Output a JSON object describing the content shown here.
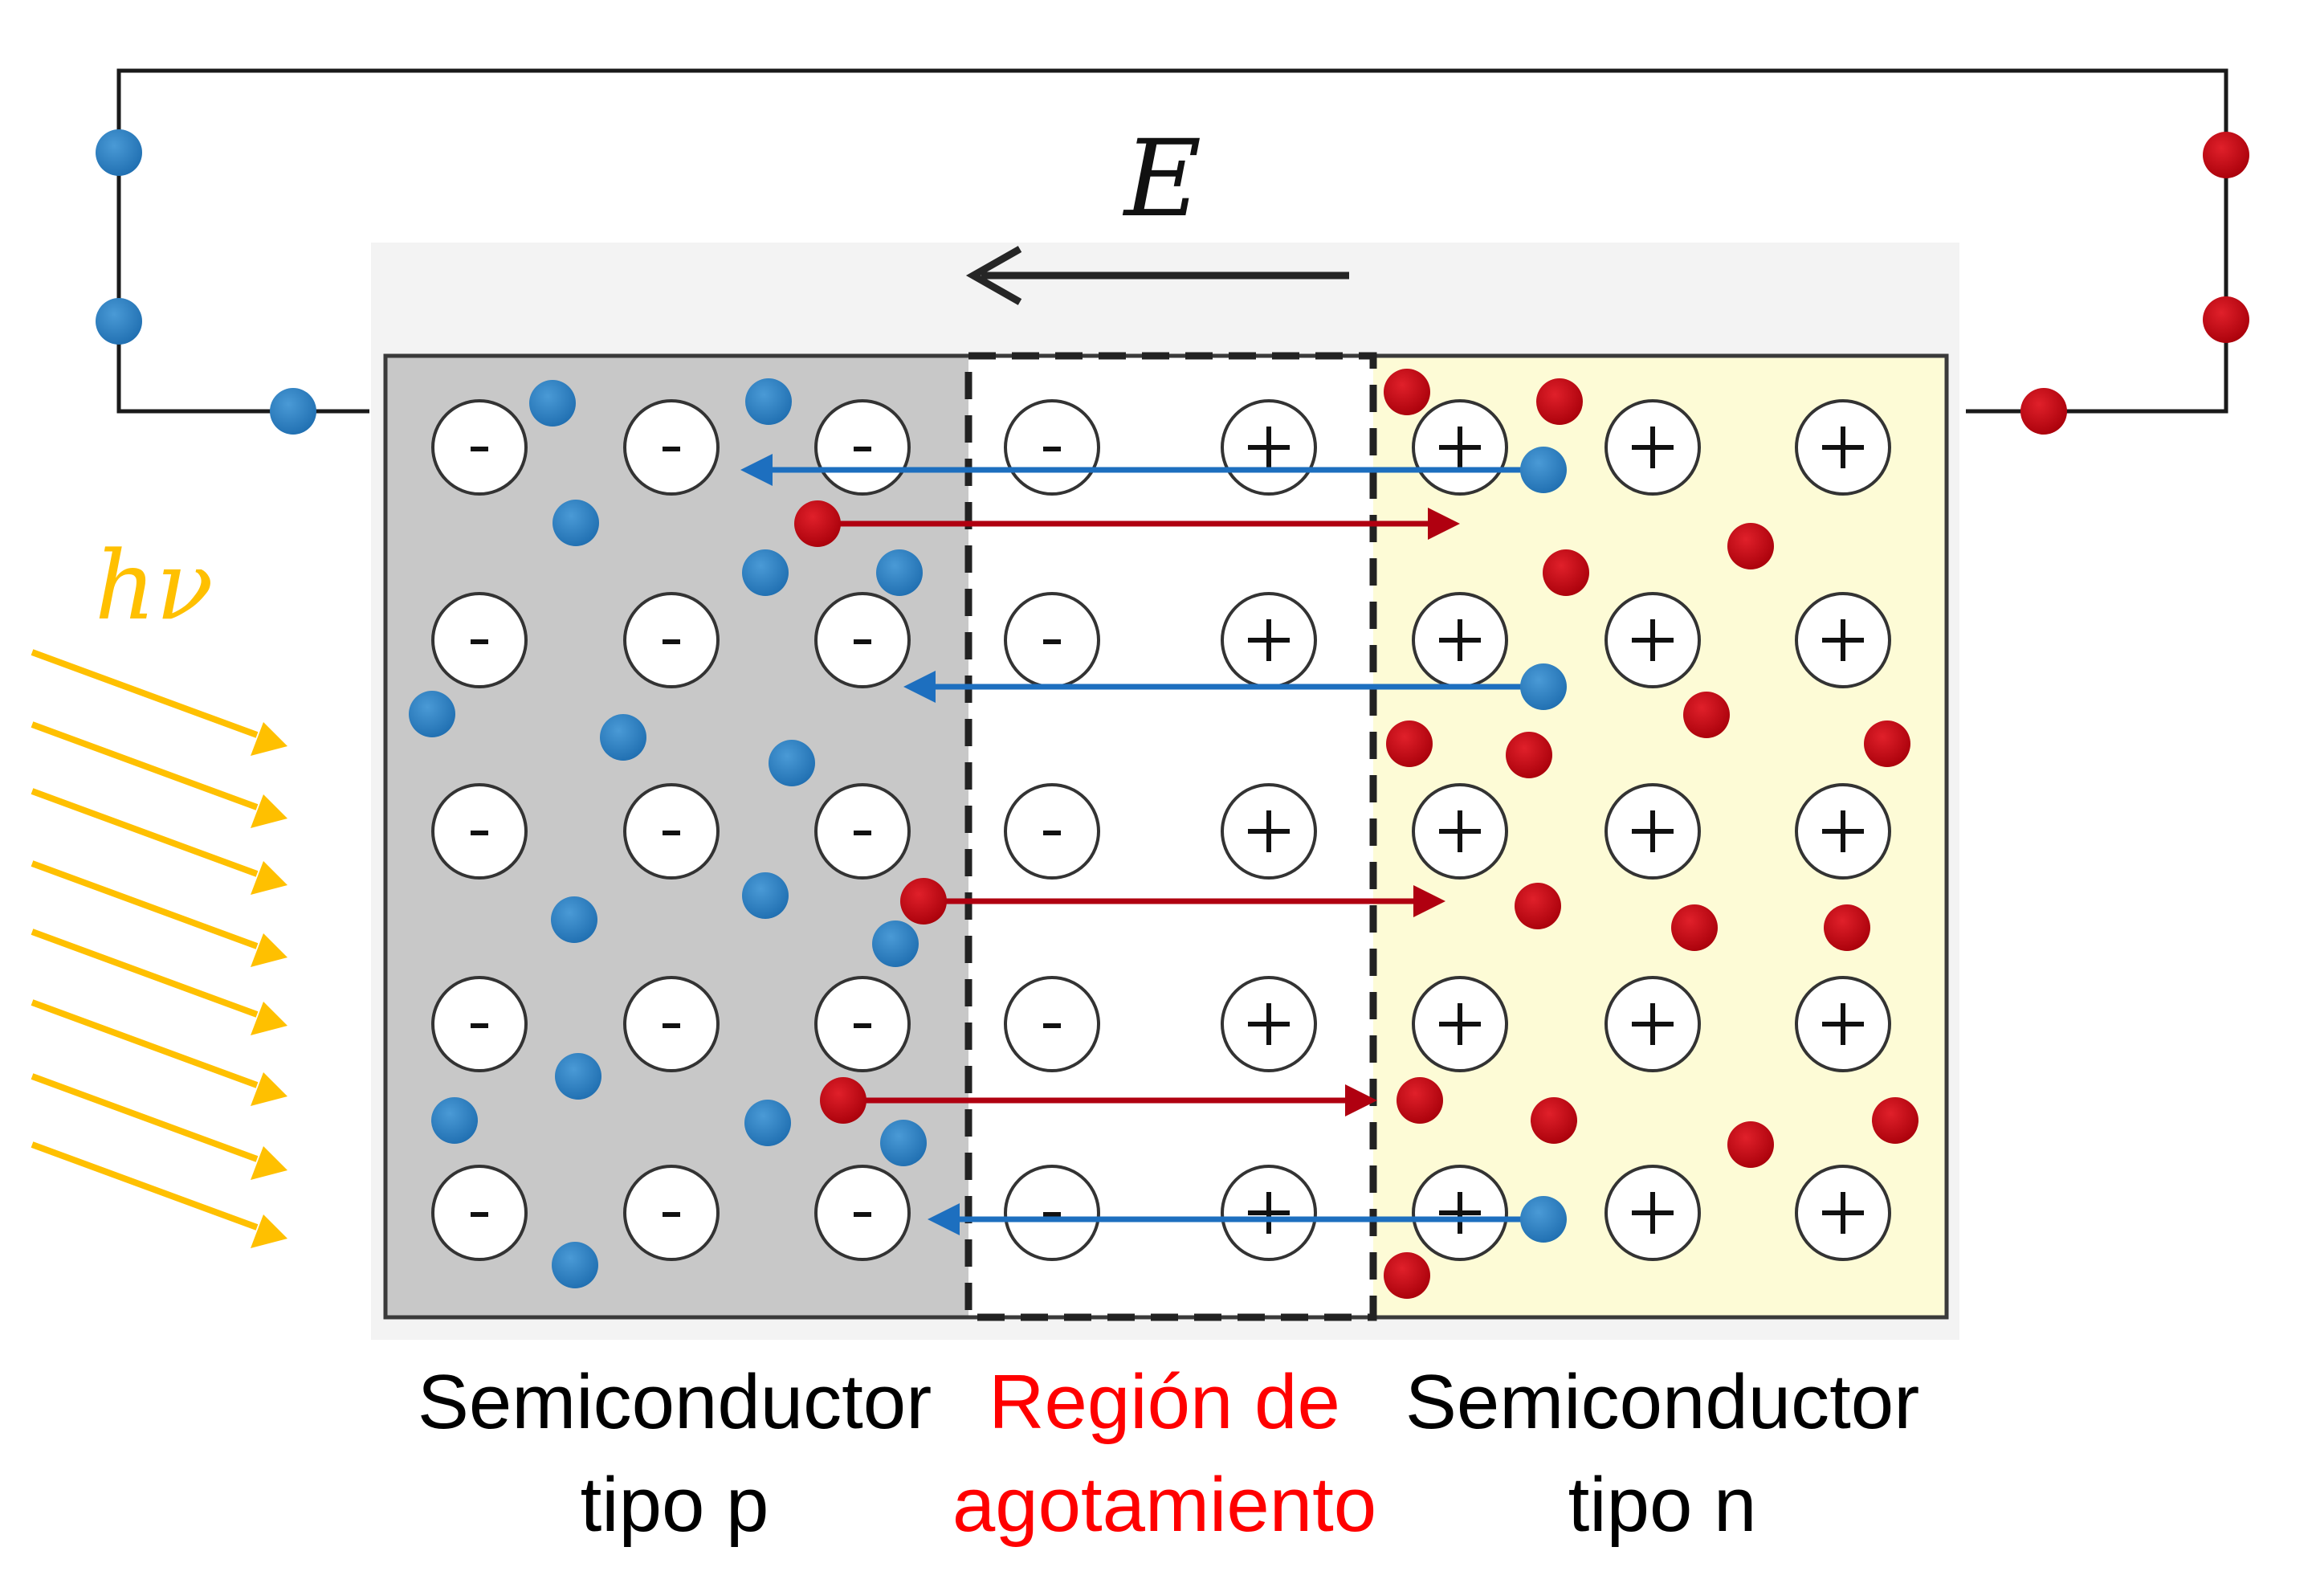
{
  "field_label": "E",
  "light_label": "hν",
  "labels": {
    "p_region": {
      "line1": "Semiconductor",
      "line2": "tipo p"
    },
    "depletion": {
      "line1": "Región de",
      "line2": "agotamiento"
    },
    "n_region": {
      "line1": "Semiconductor",
      "line2": "tipo n"
    }
  },
  "ion_symbols": {
    "acceptor": "-",
    "donor": "+"
  },
  "colors": {
    "p_region": "#c8c8c8",
    "n_region": "#fdfbd6",
    "depletion": "#ffffff",
    "hole_blue": "#2a7bbf",
    "electron_red": "#c0000e",
    "light": "#ffc000",
    "depletion_text": "#ff0000",
    "field_arrow": "#262626"
  },
  "icons": {
    "acceptor_ion": "circle-minus-icon",
    "donor_ion": "circle-plus-icon",
    "carrier": "dot-icon",
    "light_ray": "arrow-right-icon"
  }
}
